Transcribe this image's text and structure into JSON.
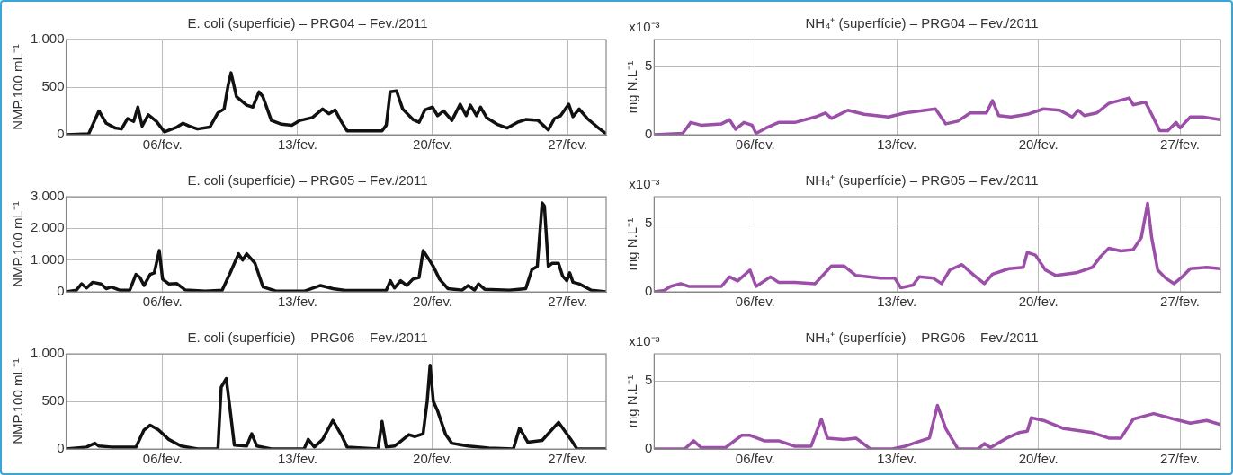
{
  "chart_data": [
    {
      "type": "line",
      "title": "E. coli (superfície) – PRG04 – Fev./2011",
      "ylabel": "NMP.100 mL⁻¹",
      "xlim": [
        1,
        29
      ],
      "xticks": [
        {
          "value": 6,
          "label": "06/fev."
        },
        {
          "value": 13,
          "label": "13/fev."
        },
        {
          "value": 20,
          "label": "20/fev."
        },
        {
          "value": 27,
          "label": "27/fev."
        }
      ],
      "ylim": [
        0,
        1000
      ],
      "yticks": [
        0,
        500,
        {
          "value": 1000,
          "label": "1.000"
        }
      ],
      "grid": true,
      "x": [
        1,
        2.17,
        2.7,
        3.08,
        3.55,
        3.87,
        4.19,
        4.5,
        4.72,
        4.94,
        5.26,
        5.68,
        6.1,
        6.74,
        7.06,
        7.38,
        7.81,
        8.45,
        8.87,
        9.19,
        9.4,
        9.55,
        9.83,
        10.36,
        10.68,
        11,
        11.2,
        11.64,
        12.17,
        12.7,
        13.13,
        13.77,
        14.3,
        14.62,
        14.94,
        15.26,
        15.57,
        16.53,
        17.38,
        17.6,
        17.8,
        18.13,
        18.45,
        18.98,
        19.3,
        19.6,
        20,
        20.26,
        20.57,
        21,
        21.43,
        21.74,
        21.96,
        22.28,
        22.49,
        22.8,
        23.34,
        23.87,
        24.4,
        24.83,
        25.47,
        26,
        26.32,
        26.64,
        27.06,
        27.28,
        27.6,
        28.02,
        28.55,
        29
      ],
      "series": [
        {
          "color": "#111111",
          "values": [
            0,
            10,
            250,
            120,
            70,
            60,
            170,
            140,
            290,
            90,
            210,
            140,
            30,
            80,
            120,
            90,
            60,
            80,
            230,
            270,
            520,
            650,
            400,
            310,
            290,
            450,
            400,
            150,
            110,
            100,
            150,
            180,
            270,
            220,
            260,
            140,
            40,
            40,
            40,
            100,
            450,
            460,
            270,
            160,
            130,
            260,
            290,
            200,
            250,
            150,
            320,
            200,
            310,
            200,
            290,
            180,
            110,
            70,
            130,
            160,
            150,
            50,
            170,
            200,
            320,
            190,
            270,
            170,
            80,
            10
          ]
        }
      ]
    },
    {
      "type": "line",
      "title": "NH₄⁺ (superfície) – PRG04 – Fev./2011",
      "ylabel": "mg N.L⁻¹",
      "annotations": [
        "x10⁻³"
      ],
      "xlim": [
        1,
        29
      ],
      "xticks": [
        {
          "value": 6,
          "label": "06/fev."
        },
        {
          "value": 13,
          "label": "13/fev."
        },
        {
          "value": 20,
          "label": "20/fev."
        },
        {
          "value": 27,
          "label": "27/fev."
        }
      ],
      "ylim": [
        0,
        7
      ],
      "yticks": [
        0,
        5
      ],
      "grid": true,
      "x": [
        1,
        2.41,
        2.81,
        3.32,
        4.33,
        4.73,
        5.03,
        5.44,
        5.84,
        6.04,
        6.54,
        7.15,
        7.96,
        8.96,
        9.47,
        9.77,
        10.58,
        11.38,
        12.59,
        13.4,
        14.91,
        15.42,
        16.02,
        16.63,
        17.43,
        17.73,
        18.04,
        18.64,
        19.45,
        20.25,
        21.06,
        21.67,
        21.97,
        22.27,
        22.88,
        23.48,
        23.98,
        24.49,
        24.69,
        25.29,
        25.6,
        26,
        26.4,
        26.81,
        27.01,
        27.51,
        28.12,
        29
      ],
      "series": [
        {
          "color": "#9b4fa8",
          "values": [
            0,
            0.1,
            0.9,
            0.7,
            0.8,
            1.1,
            0.4,
            0.9,
            0.7,
            0.1,
            0.5,
            0.9,
            0.9,
            1.3,
            1.6,
            1.2,
            1.8,
            1.5,
            1.3,
            1.6,
            1.9,
            0.8,
            1,
            1.6,
            1.6,
            2.5,
            1.4,
            1.3,
            1.5,
            1.9,
            1.8,
            1.3,
            1.8,
            1.4,
            1.6,
            2.3,
            2.5,
            2.7,
            2.2,
            2.4,
            1.5,
            0.3,
            0.3,
            0.9,
            0.5,
            1.3,
            1.3,
            1.1
          ]
        }
      ]
    },
    {
      "type": "line",
      "title": "E. coli (superfície) – PRG05 – Fev./2011",
      "ylabel": "NMP.100 mL⁻¹",
      "xlim": [
        1,
        29
      ],
      "xticks": [
        {
          "value": 6,
          "label": "06/fev."
        },
        {
          "value": 13,
          "label": "13/fev."
        },
        {
          "value": 20,
          "label": "20/fev."
        },
        {
          "value": 27,
          "label": "27/fev."
        }
      ],
      "ylim": [
        0,
        3000
      ],
      "yticks": [
        0,
        {
          "value": 1000,
          "label": "1.000"
        },
        {
          "value": 2000,
          "label": "2.000"
        },
        {
          "value": 3000,
          "label": "3.000"
        }
      ],
      "grid": true,
      "x": [
        1,
        1.53,
        1.8,
        2.06,
        2.38,
        2.81,
        3.08,
        3.34,
        3.77,
        4.3,
        4.62,
        4.83,
        5.04,
        5.36,
        5.57,
        5.83,
        6,
        6.32,
        6.74,
        7.17,
        8.23,
        9.09,
        9.51,
        9.94,
        10.15,
        10.36,
        10.79,
        11.21,
        11.85,
        13.34,
        14.19,
        14.83,
        15.47,
        17.6,
        17.81,
        18.02,
        18.34,
        18.66,
        18.98,
        19.3,
        19.51,
        19.83,
        20.04,
        20.36,
        20.79,
        21.53,
        21.85,
        22.17,
        22.38,
        22.7,
        23.98,
        24.83,
        25.15,
        25.43,
        25.68,
        25.8,
        26,
        26.21,
        26.53,
        26.74,
        26.96,
        27.11,
        27.28,
        27.6,
        28.23,
        29
      ],
      "series": [
        {
          "color": "#111111",
          "values": [
            0,
            50,
            250,
            120,
            300,
            250,
            100,
            150,
            50,
            50,
            550,
            450,
            200,
            550,
            600,
            1300,
            400,
            250,
            260,
            60,
            20,
            50,
            600,
            1200,
            1000,
            1200,
            900,
            150,
            30,
            20,
            200,
            100,
            40,
            50,
            350,
            120,
            350,
            200,
            400,
            450,
            1300,
            1000,
            800,
            400,
            100,
            50,
            200,
            50,
            250,
            80,
            50,
            100,
            700,
            800,
            2800,
            2700,
            800,
            900,
            900,
            500,
            350,
            600,
            300,
            250,
            50,
            0
          ]
        }
      ]
    },
    {
      "type": "line",
      "title": "NH₄⁺ (superfície) – PRG05 – Fev./2011",
      "ylabel": "mg N.L⁻¹",
      "annotations": [
        "x10⁻³"
      ],
      "xlim": [
        1,
        29
      ],
      "xticks": [
        {
          "value": 6,
          "label": "06/fev."
        },
        {
          "value": 13,
          "label": "13/fev."
        },
        {
          "value": 20,
          "label": "20/fev."
        },
        {
          "value": 27,
          "label": "27/fev."
        }
      ],
      "ylim": [
        0,
        7
      ],
      "yticks": [
        0,
        5
      ],
      "grid": true,
      "x": [
        1,
        1.5,
        1.81,
        2.31,
        2.71,
        3.52,
        4.33,
        4.73,
        5.13,
        5.74,
        6.04,
        6.75,
        7.15,
        7.96,
        8.96,
        9.77,
        10.38,
        10.98,
        12.19,
        12.9,
        13.2,
        13.8,
        14.1,
        14.81,
        15.21,
        15.62,
        16.22,
        16.83,
        17.33,
        17.73,
        18.54,
        19.25,
        19.45,
        19.85,
        20.35,
        20.86,
        21.87,
        22.67,
        23.08,
        23.48,
        24.08,
        24.69,
        25.09,
        25.4,
        25.6,
        25.9,
        26.3,
        26.71,
        27.11,
        27.51,
        28.32,
        29
      ],
      "series": [
        {
          "color": "#9b4fa8",
          "values": [
            0,
            0.1,
            0.4,
            0.6,
            0.4,
            0.4,
            0.4,
            1.1,
            0.8,
            1.6,
            0.4,
            1.1,
            0.7,
            0.7,
            0.6,
            1.9,
            1.9,
            1.2,
            1,
            1,
            0.3,
            0.5,
            1.1,
            1,
            0.6,
            1.6,
            2,
            1.2,
            0.6,
            1.3,
            1.7,
            1.8,
            2.9,
            2.7,
            1.6,
            1.2,
            1.4,
            1.8,
            2.6,
            3.2,
            3,
            3.1,
            4,
            6.5,
            4,
            1.6,
            1,
            0.6,
            1.1,
            1.7,
            1.8,
            1.7
          ]
        }
      ]
    },
    {
      "type": "line",
      "title": "E. coli (superfície) – PRG06 – Fev./2011",
      "ylabel": "NMP.100 mL⁻¹",
      "xlim": [
        1,
        29
      ],
      "xticks": [
        {
          "value": 6,
          "label": "06/fev."
        },
        {
          "value": 13,
          "label": "13/fev."
        },
        {
          "value": 20,
          "label": "20/fev."
        },
        {
          "value": 27,
          "label": "27/fev."
        }
      ],
      "ylim": [
        0,
        1000
      ],
      "yticks": [
        0,
        500,
        {
          "value": 1000,
          "label": "1.000"
        }
      ],
      "grid": true,
      "x": [
        1,
        2.06,
        2.49,
        2.7,
        3.34,
        4.62,
        5.04,
        5.36,
        5.79,
        6.32,
        6.96,
        7.81,
        8.87,
        9.04,
        9.3,
        9.51,
        9.72,
        10.36,
        10.62,
        10.89,
        11.64,
        13.34,
        13.55,
        13.87,
        14.3,
        14.83,
        15.26,
        15.57,
        17.17,
        17.38,
        17.6,
        18.02,
        18.34,
        18.77,
        19.09,
        19.51,
        19.72,
        19.87,
        20.04,
        20.26,
        20.68,
        21,
        21.85,
        22.91,
        24.19,
        24.51,
        24.94,
        25.68,
        26.53,
        27.17,
        27.49,
        29
      ],
      "series": [
        {
          "color": "#111111",
          "values": [
            0,
            20,
            60,
            30,
            20,
            20,
            200,
            250,
            200,
            100,
            30,
            0,
            0,
            650,
            740,
            400,
            40,
            30,
            160,
            30,
            0,
            0,
            100,
            20,
            100,
            300,
            150,
            20,
            0,
            290,
            20,
            30,
            80,
            150,
            130,
            160,
            500,
            880,
            500,
            400,
            150,
            60,
            30,
            10,
            0,
            220,
            70,
            90,
            280,
            100,
            0,
            0
          ]
        }
      ]
    },
    {
      "type": "line",
      "title": "NH₄⁺ (superfície) – PRG06 – Fev./2011",
      "ylabel": "mg N.L⁻¹",
      "annotations": [
        "x10⁻³"
      ],
      "xlim": [
        1,
        29
      ],
      "xticks": [
        {
          "value": 6,
          "label": "06/fev."
        },
        {
          "value": 13,
          "label": "13/fev."
        },
        {
          "value": 20,
          "label": "20/fev."
        },
        {
          "value": 27,
          "label": "27/fev."
        }
      ],
      "ylim": [
        0,
        7
      ],
      "yticks": [
        0,
        5
      ],
      "grid": true,
      "x": [
        1,
        2.51,
        2.96,
        3.32,
        4.53,
        5.33,
        5.74,
        6.44,
        7.15,
        7.96,
        8.76,
        9.27,
        9.57,
        10.38,
        10.98,
        11.69,
        12.79,
        13.4,
        14.61,
        15.01,
        15.42,
        16.02,
        17.03,
        17.33,
        17.63,
        18.44,
        19.04,
        19.45,
        19.65,
        20.25,
        21.26,
        22.67,
        23.48,
        24.08,
        24.69,
        25.7,
        26.71,
        27.51,
        28.32,
        29
      ],
      "series": [
        {
          "color": "#9b4fa8",
          "values": [
            0,
            0,
            0.6,
            0.1,
            0.1,
            1,
            1,
            0.6,
            0.6,
            0.2,
            0.2,
            2.2,
            0.8,
            0.7,
            0.8,
            0,
            0,
            0.2,
            0.8,
            3.2,
            1.5,
            0,
            0,
            0.4,
            0.1,
            0.8,
            1.2,
            1.3,
            2.3,
            2.1,
            1.5,
            1.2,
            0.8,
            0.8,
            2.2,
            2.6,
            2.2,
            1.9,
            2.1,
            1.8
          ]
        }
      ]
    }
  ]
}
